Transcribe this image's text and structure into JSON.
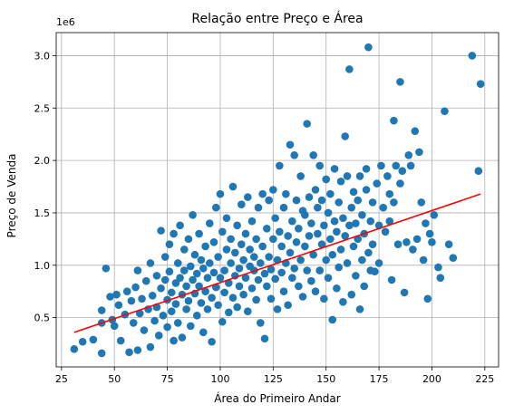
{
  "chart_data": {
    "type": "scatter",
    "title": "Relação entre Preço e Área",
    "xlabel": "Área do Primeiro Andar",
    "ylabel": "Preço de Venda",
    "offset_label": "1e6",
    "xlim": [
      22.5,
      231.5
    ],
    "ylim": [
      0.03,
      3.22
    ],
    "xticks": [
      25,
      50,
      75,
      100,
      125,
      150,
      175,
      200,
      225
    ],
    "yticks": [
      0.5,
      1.0,
      1.5,
      2.0,
      2.5,
      3.0
    ],
    "ytick_labels": [
      "0.5",
      "1.0",
      "1.5",
      "2.0",
      "2.5",
      "3.0"
    ],
    "grid": true,
    "colors": {
      "points": "#1f77b4",
      "trend": "#ff0000",
      "grid": "#b0b0b0"
    },
    "points": [
      [
        31,
        0.2
      ],
      [
        35,
        0.27
      ],
      [
        40,
        0.29
      ],
      [
        44,
        0.16
      ],
      [
        44,
        0.57
      ],
      [
        44,
        0.45
      ],
      [
        46,
        0.97
      ],
      [
        48,
        0.7
      ],
      [
        49,
        0.48
      ],
      [
        50,
        0.42
      ],
      [
        51,
        0.72
      ],
      [
        52,
        0.62
      ],
      [
        53,
        0.28
      ],
      [
        55,
        0.53
      ],
      [
        56,
        0.75
      ],
      [
        57,
        0.17
      ],
      [
        58,
        0.66
      ],
      [
        59,
        0.45
      ],
      [
        60,
        0.79
      ],
      [
        61,
        0.19
      ],
      [
        61,
        0.95
      ],
      [
        62,
        0.54
      ],
      [
        63,
        0.68
      ],
      [
        64,
        0.38
      ],
      [
        65,
        0.85
      ],
      [
        66,
        0.58
      ],
      [
        67,
        0.22
      ],
      [
        67,
        1.02
      ],
      [
        68,
        0.71
      ],
      [
        69,
        0.47
      ],
      [
        70,
        0.9
      ],
      [
        70,
        0.6
      ],
      [
        71,
        0.33
      ],
      [
        72,
        1.33
      ],
      [
        72,
        0.78
      ],
      [
        73,
        0.52
      ],
      [
        74,
        1.08
      ],
      [
        74,
        0.86
      ],
      [
        75,
        0.67
      ],
      [
        75,
        0.41
      ],
      [
        76,
        0.94
      ],
      [
        76,
        1.2
      ],
      [
        77,
        0.74
      ],
      [
        77,
        0.56
      ],
      [
        78,
        0.28
      ],
      [
        78,
        1.3
      ],
      [
        79,
        0.83
      ],
      [
        79,
        0.63
      ],
      [
        80,
        1.02
      ],
      [
        80,
        0.45
      ],
      [
        81,
        1.38
      ],
      [
        81,
        0.88
      ],
      [
        82,
        0.72
      ],
      [
        82,
        0.31
      ],
      [
        83,
        1.15
      ],
      [
        83,
        0.95
      ],
      [
        84,
        0.58
      ],
      [
        84,
        0.8
      ],
      [
        85,
        1.25
      ],
      [
        85,
        0.66
      ],
      [
        86,
        0.99
      ],
      [
        86,
        0.42
      ],
      [
        87,
        0.86
      ],
      [
        87,
        1.48
      ],
      [
        88,
        0.73
      ],
      [
        88,
        1.1
      ],
      [
        89,
        0.52
      ],
      [
        89,
        0.92
      ],
      [
        90,
        1.3
      ],
      [
        90,
        0.8
      ],
      [
        91,
        0.64
      ],
      [
        91,
        1.05
      ],
      [
        92,
        0.36
      ],
      [
        92,
        0.97
      ],
      [
        93,
        1.18
      ],
      [
        93,
        0.75
      ],
      [
        94,
        0.88
      ],
      [
        94,
        0.58
      ],
      [
        95,
        1.4
      ],
      [
        95,
        1.02
      ],
      [
        96,
        0.69
      ],
      [
        96,
        0.27
      ],
      [
        97,
        1.22
      ],
      [
        97,
        0.93
      ],
      [
        98,
        0.79
      ],
      [
        98,
        1.55
      ],
      [
        99,
        0.62
      ],
      [
        99,
        1.08
      ],
      [
        100,
        0.88
      ],
      [
        100,
        1.68
      ],
      [
        101,
        0.46
      ],
      [
        101,
        1.32
      ],
      [
        102,
        0.95
      ],
      [
        102,
        0.74
      ],
      [
        103,
        1.15
      ],
      [
        103,
        1.45
      ],
      [
        104,
        0.83
      ],
      [
        104,
        0.55
      ],
      [
        105,
        1.02
      ],
      [
        105,
        1.25
      ],
      [
        106,
        0.69
      ],
      [
        106,
        1.75
      ],
      [
        107,
        0.9
      ],
      [
        107,
        1.12
      ],
      [
        108,
        0.6
      ],
      [
        108,
        1.38
      ],
      [
        109,
        0.97
      ],
      [
        109,
        0.8
      ],
      [
        110,
        1.2
      ],
      [
        110,
        1.58
      ],
      [
        111,
        0.72
      ],
      [
        111,
        1.05
      ],
      [
        112,
        0.88
      ],
      [
        112,
        1.3
      ],
      [
        113,
        0.56
      ],
      [
        113,
        1.65
      ],
      [
        114,
        0.99
      ],
      [
        114,
        1.15
      ],
      [
        115,
        0.78
      ],
      [
        115,
        1.42
      ],
      [
        116,
        0.95
      ],
      [
        116,
        1.08
      ],
      [
        117,
        0.67
      ],
      [
        117,
        1.25
      ],
      [
        118,
        1.55
      ],
      [
        118,
        0.86
      ],
      [
        119,
        1.02
      ],
      [
        119,
        0.45
      ],
      [
        120,
        1.18
      ],
      [
        120,
        1.68
      ],
      [
        121,
        0.92
      ],
      [
        121,
        0.3
      ],
      [
        122,
        1.35
      ],
      [
        122,
        0.8
      ],
      [
        123,
        1.08
      ],
      [
        123,
        1.62
      ],
      [
        124,
        0.96
      ],
      [
        124,
        0.68
      ],
      [
        125,
        1.25
      ],
      [
        125,
        1.72
      ],
      [
        126,
        0.87
      ],
      [
        126,
        1.45
      ],
      [
        127,
        1.05
      ],
      [
        127,
        0.58
      ],
      [
        128,
        1.32
      ],
      [
        128,
        1.95
      ],
      [
        129,
        0.93
      ],
      [
        129,
        1.18
      ],
      [
        130,
        0.75
      ],
      [
        130,
        1.55
      ],
      [
        131,
        1.02
      ],
      [
        131,
        1.68
      ],
      [
        132,
        0.62
      ],
      [
        132,
        1.28
      ],
      [
        133,
        2.15
      ],
      [
        133,
        1.12
      ],
      [
        134,
        0.88
      ],
      [
        134,
        1.42
      ],
      [
        135,
        2.05
      ],
      [
        135,
        0.97
      ],
      [
        136,
        1.62
      ],
      [
        136,
        1.22
      ],
      [
        137,
        0.8
      ],
      [
        137,
        1.35
      ],
      [
        138,
        1.85
      ],
      [
        138,
        1.05
      ],
      [
        139,
        1.52
      ],
      [
        139,
        0.7
      ],
      [
        140,
        1.18
      ],
      [
        140,
        1.48
      ],
      [
        141,
        2.35
      ],
      [
        141,
        0.95
      ],
      [
        142,
        1.65
      ],
      [
        142,
        1.28
      ],
      [
        143,
        0.85
      ],
      [
        143,
        1.4
      ],
      [
        144,
        2.05
      ],
      [
        144,
        1.1
      ],
      [
        145,
        1.72
      ],
      [
        145,
        0.75
      ],
      [
        146,
        1.3
      ],
      [
        146,
        1.55
      ],
      [
        147,
        0.95
      ],
      [
        147,
        1.95
      ],
      [
        148,
        1.2
      ],
      [
        148,
        1.62
      ],
      [
        149,
        0.68
      ],
      [
        149,
        1.38
      ],
      [
        150,
        1.05
      ],
      [
        150,
        1.82
      ],
      [
        151,
        1.5
      ],
      [
        151,
        0.88
      ],
      [
        152,
        1.25
      ],
      [
        152,
        1.68
      ],
      [
        153,
        0.48
      ],
      [
        153,
        1.1
      ],
      [
        154,
        1.92
      ],
      [
        154,
        1.42
      ],
      [
        155,
        0.78
      ],
      [
        155,
        1.32
      ],
      [
        156,
        1.6
      ],
      [
        156,
        0.98
      ],
      [
        157,
        1.15
      ],
      [
        157,
        1.8
      ],
      [
        158,
        0.65
      ],
      [
        158,
        1.45
      ],
      [
        159,
        1.28
      ],
      [
        159,
        2.23
      ],
      [
        160,
        1.02
      ],
      [
        160,
        1.85
      ],
      [
        161,
        2.87
      ],
      [
        161,
        1.38
      ],
      [
        162,
        0.72
      ],
      [
        162,
        1.55
      ],
      [
        163,
        1.18
      ],
      [
        163,
        1.7
      ],
      [
        164,
        0.9
      ],
      [
        164,
        1.4
      ],
      [
        165,
        1.62
      ],
      [
        165,
        1.25
      ],
      [
        166,
        0.58
      ],
      [
        166,
        1.85
      ],
      [
        167,
        1.05
      ],
      [
        167,
        1.48
      ],
      [
        168,
        1.3
      ],
      [
        168,
        0.8
      ],
      [
        169,
        1.72
      ],
      [
        169,
        1.92
      ],
      [
        170,
        3.08
      ],
      [
        170,
        1.12
      ],
      [
        171,
        1.42
      ],
      [
        171,
        0.95
      ],
      [
        172,
        1.6
      ],
      [
        172,
        1.2
      ],
      [
        173,
        0.94
      ],
      [
        174,
        1.78
      ],
      [
        175,
        1.38
      ],
      [
        175,
        1.02
      ],
      [
        176,
        1.95
      ],
      [
        177,
        1.55
      ],
      [
        178,
        1.32
      ],
      [
        179,
        1.85
      ],
      [
        180,
        1.42
      ],
      [
        180,
        1.68
      ],
      [
        181,
        0.86
      ],
      [
        182,
        2.38
      ],
      [
        182,
        1.6
      ],
      [
        183,
        1.95
      ],
      [
        184,
        1.2
      ],
      [
        185,
        2.75
      ],
      [
        185,
        1.78
      ],
      [
        186,
        1.9
      ],
      [
        187,
        0.74
      ],
      [
        188,
        1.22
      ],
      [
        189,
        2.05
      ],
      [
        190,
        1.95
      ],
      [
        191,
        1.15
      ],
      [
        192,
        2.28
      ],
      [
        193,
        1.25
      ],
      [
        194,
        2.08
      ],
      [
        195,
        1.6
      ],
      [
        196,
        1.05
      ],
      [
        197,
        1.4
      ],
      [
        198,
        0.68
      ],
      [
        199,
        1.3
      ],
      [
        200,
        1.22
      ],
      [
        201,
        1.48
      ],
      [
        203,
        0.98
      ],
      [
        204,
        0.88
      ],
      [
        206,
        2.47
      ],
      [
        208,
        1.2
      ],
      [
        210,
        1.07
      ],
      [
        219,
        3.0
      ],
      [
        222,
        1.9
      ],
      [
        223,
        2.73
      ]
    ],
    "trend": {
      "x": [
        31,
        223
      ],
      "y": [
        0.36,
        1.68
      ]
    }
  }
}
